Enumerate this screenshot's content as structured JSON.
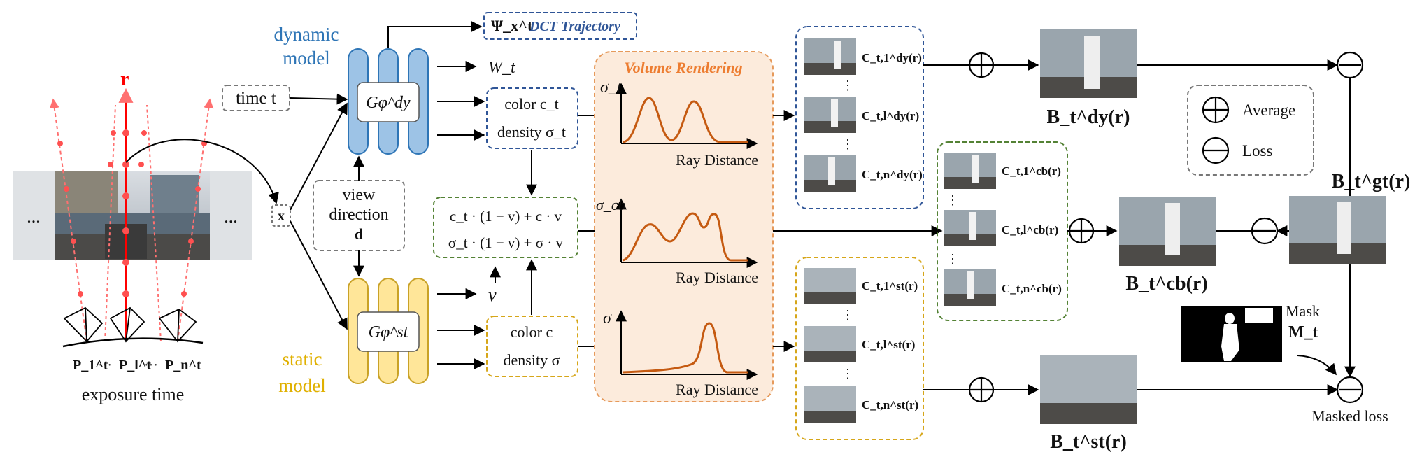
{
  "labels": {
    "ray": "r",
    "dynamic_line1": "dynamic",
    "dynamic_line2": "model",
    "static_line1": "static",
    "static_line2": "model",
    "exposure_time": "exposure time",
    "time_input": "time t",
    "x_input": "x",
    "view_line1": "view",
    "view_line2": "direction",
    "view_line3": "d",
    "G_dynamic": "Gφ^dy",
    "G_static": "Gφ^st",
    "dct_trajectory": "DCT Trajectory",
    "psi": "Ψ_x^t",
    "W_t": "W_t",
    "v_out": "v",
    "color_dy": "color c_t",
    "density_dy": "density σ_t",
    "color_st": "color c",
    "density_st": "density σ",
    "blend_color": "c_t · (1 − v) + c · v",
    "blend_density": "σ_t · (1 − v) + σ · v",
    "volume_rendering": "Volume Rendering",
    "ray_distance": "Ray Distance",
    "sigma_t": "σ_t",
    "sigma_cb": "σ_cb",
    "sigma": "σ",
    "B_dy": "B_t^dy(r)",
    "B_cb": "B_t^cb(r)",
    "B_st": "B_t^st(r)",
    "B_gt": "B_t^gt(r)",
    "average": "Average",
    "loss": "Loss",
    "mask_line1": "Mask",
    "mask_line2": "M_t",
    "masked_loss": "Masked loss",
    "ellipsis": "..."
  },
  "poses": [
    "P_1^t",
    "···",
    "P_l^t",
    "···",
    "P_n^t"
  ],
  "groups": {
    "dy": {
      "color": "#2f5597",
      "c_list": [
        "C_t,1^dy(r)",
        "C_t,l^dy(r)",
        "C_t,n^dy(r)"
      ]
    },
    "cb": {
      "color": "#548235",
      "c_list": [
        "C_t,1^cb(r)",
        "C_t,l^cb(r)",
        "C_t,n^cb(r)"
      ]
    },
    "st": {
      "color": "#d6a619",
      "c_list": [
        "C_t,1^st(r)",
        "C_t,l^st(r)",
        "C_t,n^st(r)"
      ]
    }
  },
  "colors": {
    "dynamic_fill": "#9dc3e6",
    "dynamic_stroke": "#2e75b6",
    "static_fill": "#ffe699",
    "static_stroke": "#c9a227",
    "volume_fill": "#fcebdc",
    "volume_stroke": "#e69a5b",
    "curve": "#c55a11",
    "ray": "#ff0000"
  }
}
